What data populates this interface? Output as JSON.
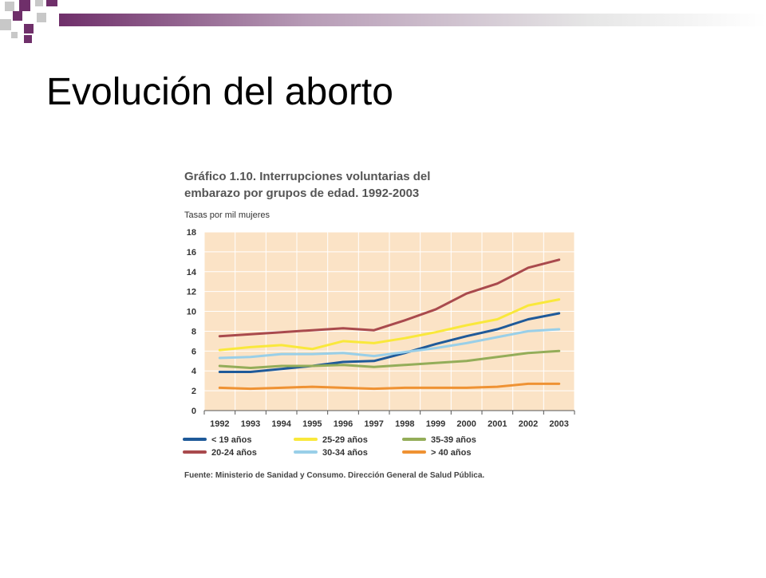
{
  "slide": {
    "title": "Evolución del aborto"
  },
  "colors": {
    "deco_purple": "#6f2f6a",
    "deco_gray": "#bdbdbd",
    "plot_bg": "#fbe3c6",
    "grid": "#ffffff"
  },
  "chart_data": {
    "type": "line",
    "title": "Gráfico 1.10. Interrupciones voluntarias del embarazo por grupos de edad. 1992-2003",
    "title_lines": [
      "Gráfico 1.10. Interrupciones voluntarias del",
      "embarazo por grupos de edad. 1992-2003"
    ],
    "ylabel": "Tasas por mil mujeres",
    "xlabel": "",
    "ylim": [
      0,
      18
    ],
    "yticks": [
      0,
      2,
      4,
      6,
      8,
      10,
      12,
      14,
      16,
      18
    ],
    "x": [
      "1992",
      "1993",
      "1994",
      "1995",
      "1996",
      "1997",
      "1998",
      "1999",
      "2000",
      "2001",
      "2002",
      "2003"
    ],
    "grid": true,
    "legend_position": "bottom",
    "series": [
      {
        "name": "< 19 años",
        "color": "#1f5a99",
        "values": [
          3.9,
          3.9,
          4.2,
          4.5,
          4.9,
          5.0,
          5.8,
          6.7,
          7.5,
          8.2,
          9.2,
          9.8
        ]
      },
      {
        "name": "25-29 años",
        "color": "#f9e83b",
        "values": [
          6.1,
          6.4,
          6.6,
          6.2,
          7.0,
          6.8,
          7.3,
          7.9,
          8.6,
          9.2,
          10.6,
          11.2
        ]
      },
      {
        "name": "35-39 años",
        "color": "#94ad59",
        "values": [
          4.5,
          4.3,
          4.5,
          4.5,
          4.6,
          4.4,
          4.6,
          4.8,
          5.0,
          5.4,
          5.8,
          6.0
        ]
      },
      {
        "name": "20-24 años",
        "color": "#a94a4d",
        "values": [
          7.5,
          7.7,
          7.9,
          8.1,
          8.3,
          8.1,
          9.1,
          10.2,
          11.8,
          12.8,
          14.4,
          15.2
        ]
      },
      {
        "name": "30-34 años",
        "color": "#99cfe8",
        "values": [
          5.3,
          5.4,
          5.7,
          5.7,
          5.8,
          5.5,
          5.9,
          6.3,
          6.8,
          7.4,
          8.0,
          8.2
        ]
      },
      {
        "name": "> 40 años",
        "color": "#ef9233",
        "values": [
          2.3,
          2.2,
          2.3,
          2.4,
          2.3,
          2.2,
          2.3,
          2.3,
          2.3,
          2.4,
          2.7,
          2.7
        ]
      }
    ],
    "source": "Fuente: Ministerio de Sanidad y Consumo. Dirección General de Salud Pública."
  }
}
